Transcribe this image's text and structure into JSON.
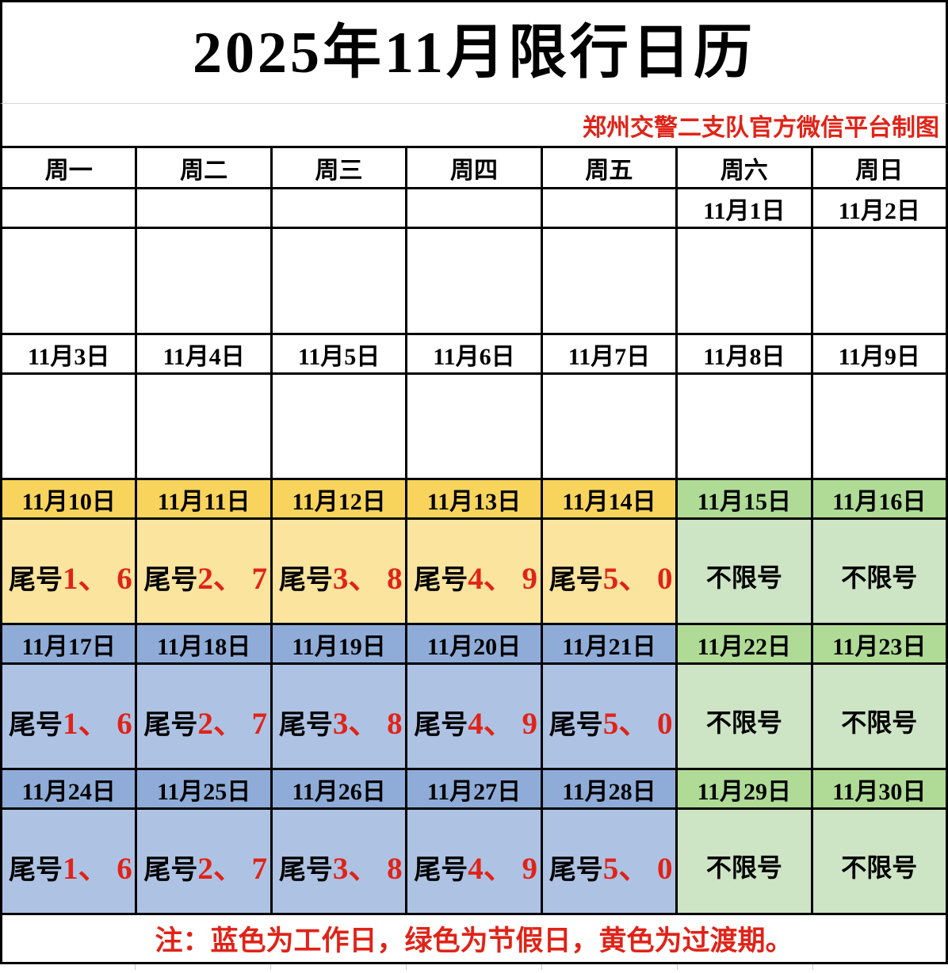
{
  "title": "2025年11月限行日历",
  "credit": "郑州交警二支队官方微信平台制图",
  "weekdays": [
    "周一",
    "周二",
    "周三",
    "周四",
    "周五",
    "周六",
    "周日"
  ],
  "weeks": {
    "week1": {
      "dates": [
        "",
        "",
        "",
        "",
        "",
        "11月1日",
        "11月2日"
      ]
    },
    "week2": {
      "dates": [
        "11月3日",
        "11月4日",
        "11月5日",
        "11月6日",
        "11月7日",
        "11月8日",
        "11月9日"
      ]
    },
    "week3": {
      "dates": [
        "11月10日",
        "11月11日",
        "11月12日",
        "11月13日",
        "11月14日",
        "11月15日",
        "11月16日"
      ],
      "prefix": "尾号",
      "numbers": [
        "1、 6",
        "2、 7",
        "3、 8",
        "4、 9",
        "5、 0"
      ],
      "no_limit": "不限号"
    },
    "week4": {
      "dates": [
        "11月17日",
        "11月18日",
        "11月19日",
        "11月20日",
        "11月21日",
        "11月22日",
        "11月23日"
      ],
      "prefix": "尾号",
      "numbers": [
        "1、 6",
        "2、 7",
        "3、 8",
        "4、 9",
        "5、 0"
      ],
      "no_limit": "不限号"
    },
    "week5": {
      "dates": [
        "11月24日",
        "11月25日",
        "11月26日",
        "11月27日",
        "11月28日",
        "11月29日",
        "11月30日"
      ],
      "prefix": "尾号",
      "numbers": [
        "1、 6",
        "2、 7",
        "3、 8",
        "4、 9",
        "5、 0"
      ],
      "no_limit": "不限号"
    }
  },
  "note": "注：蓝色为工作日，绿色为节假日，黄色为过渡期。",
  "colors": {
    "workday_blue_date": "#8facd8",
    "workday_blue_body": "#aec3e4",
    "holiday_green_date": "#afdb96",
    "holiday_green_body": "#cde4c5",
    "transition_yellow_date": "#f8d45c",
    "transition_yellow_body": "#fae49e",
    "accent_red": "#e02318"
  }
}
